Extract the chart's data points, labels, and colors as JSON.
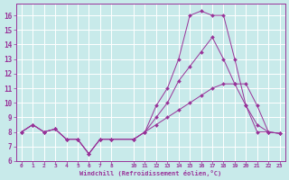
{
  "bg_color": "#c8eaea",
  "line_color": "#993399",
  "grid_color": "#ffffff",
  "xlabel": "Windchill (Refroidissement éolien,°C)",
  "xlim": [
    -0.5,
    23.5
  ],
  "ylim": [
    6,
    16.8
  ],
  "yticks": [
    6,
    7,
    8,
    9,
    10,
    11,
    12,
    13,
    14,
    15,
    16
  ],
  "xticks": [
    0,
    1,
    2,
    3,
    4,
    5,
    6,
    7,
    8,
    10,
    11,
    12,
    13,
    14,
    15,
    16,
    17,
    18,
    19,
    20,
    21,
    22,
    23
  ],
  "line1_x": [
    0,
    1,
    2,
    3,
    4,
    5,
    6,
    7,
    8,
    10,
    11,
    12,
    13,
    14,
    15,
    16,
    17,
    18,
    19,
    20,
    21,
    22,
    23
  ],
  "line1_y": [
    8.0,
    8.5,
    8.0,
    8.2,
    7.5,
    7.5,
    6.5,
    7.5,
    7.5,
    7.5,
    8.0,
    9.8,
    11.0,
    13.0,
    16.0,
    16.3,
    16.0,
    16.0,
    13.0,
    9.8,
    8.0,
    8.0,
    7.9
  ],
  "line2_x": [
    0,
    1,
    2,
    3,
    4,
    5,
    6,
    7,
    8,
    10,
    11,
    12,
    13,
    14,
    15,
    16,
    17,
    18,
    19,
    20,
    21,
    22,
    23
  ],
  "line2_y": [
    8.0,
    8.5,
    8.0,
    8.2,
    7.5,
    7.5,
    6.5,
    7.5,
    7.5,
    7.5,
    8.0,
    9.0,
    10.0,
    11.5,
    12.5,
    13.5,
    14.5,
    13.0,
    11.3,
    11.3,
    9.8,
    8.0,
    7.9
  ],
  "line3_x": [
    0,
    1,
    2,
    3,
    4,
    5,
    6,
    7,
    8,
    10,
    11,
    12,
    13,
    14,
    15,
    16,
    17,
    18,
    19,
    20,
    21,
    22,
    23
  ],
  "line3_y": [
    8.0,
    8.5,
    8.0,
    8.2,
    7.5,
    7.5,
    6.5,
    7.5,
    7.5,
    7.5,
    8.0,
    8.5,
    9.0,
    9.5,
    10.0,
    10.5,
    11.0,
    11.3,
    11.3,
    9.8,
    8.5,
    8.0,
    7.9
  ]
}
